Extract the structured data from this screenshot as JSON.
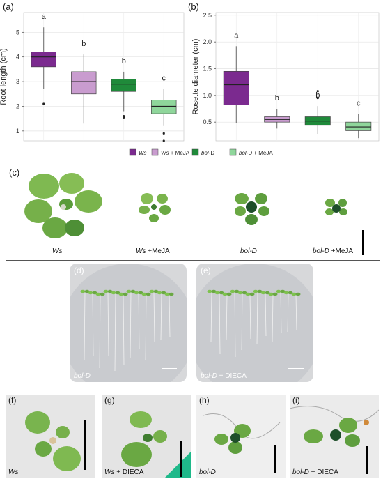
{
  "panels": {
    "a": "(a)",
    "b": "(b)",
    "c": "(c)",
    "d": "(d)",
    "e": "(e)",
    "f": "(f)",
    "g": "(g)",
    "h": "(h)",
    "i": "(i)"
  },
  "legend": [
    {
      "label_italic": "Ws",
      "label_rest": "",
      "color": "#7b2a8f"
    },
    {
      "label_italic": "Ws",
      "label_rest": " + MeJA",
      "color": "#c99ccf"
    },
    {
      "label_italic": "bol",
      "label_rest": "-D",
      "color": "#1f8a3a"
    },
    {
      "label_italic": "bol",
      "label_rest": "-D + MeJA",
      "color": "#8fd69b"
    }
  ],
  "chart_data": [
    {
      "type": "box",
      "ylabel": "Root length (cm)",
      "ylim": [
        0.6,
        5.8
      ],
      "yticks": [
        1,
        2,
        3,
        4,
        5
      ],
      "grid": true,
      "series": [
        {
          "q1": 3.6,
          "median": 4.0,
          "q3": 4.2,
          "whisker_low": 2.7,
          "whisker_high": 5.2,
          "outliers": [
            2.1
          ],
          "letter": "a",
          "color": "#7b2a8f"
        },
        {
          "q1": 2.5,
          "median": 3.0,
          "q3": 3.4,
          "whisker_low": 1.3,
          "whisker_high": 4.1,
          "outliers": [],
          "letter": "b",
          "color": "#c99ccf"
        },
        {
          "q1": 2.6,
          "median": 2.9,
          "q3": 3.1,
          "whisker_low": 1.8,
          "whisker_high": 3.4,
          "outliers": [
            1.6,
            1.55
          ],
          "letter": "b",
          "color": "#1f8a3a"
        },
        {
          "q1": 1.7,
          "median": 2.0,
          "q3": 2.25,
          "whisker_low": 1.2,
          "whisker_high": 2.7,
          "outliers": [
            0.9,
            0.6
          ],
          "letter": "c",
          "color": "#8fd69b"
        }
      ]
    },
    {
      "type": "box",
      "ylabel": "Rosette diameter (cm)",
      "ylim": [
        0.15,
        2.55
      ],
      "yticks": [
        0.5,
        1.0,
        1.5,
        2.0,
        2.5
      ],
      "ytick_labels": [
        "0.5",
        "1.0",
        "1.5",
        "2.0",
        "2.5"
      ],
      "grid": true,
      "series": [
        {
          "q1": 0.82,
          "median": 1.2,
          "q3": 1.45,
          "whisker_low": 0.48,
          "whisker_high": 1.92,
          "outliers": [],
          "letter": "a",
          "color": "#7b2a8f"
        },
        {
          "q1": 0.5,
          "median": 0.55,
          "q3": 0.6,
          "whisker_low": 0.38,
          "whisker_high": 0.75,
          "outliers": [],
          "letter": "b",
          "color": "#c99ccf"
        },
        {
          "q1": 0.44,
          "median": 0.52,
          "q3": 0.6,
          "whisker_low": 0.28,
          "whisker_high": 0.8,
          "outliers": [
            1.08,
            0.95
          ],
          "letter": "b",
          "color": "#1f8a3a"
        },
        {
          "q1": 0.34,
          "median": 0.41,
          "q3": 0.5,
          "whisker_low": 0.2,
          "whisker_high": 0.65,
          "outliers": [],
          "letter": "c",
          "color": "#8fd69b"
        }
      ]
    }
  ],
  "captions": {
    "c1_i": "Ws",
    "c1_r": "",
    "c2_i": "Ws",
    "c2_r": " +MeJA",
    "c3_i": "bol-D",
    "c3_r": "",
    "c4_i": "bol-D",
    "c4_r": " +MeJA",
    "d_i": "bol-D",
    "d_r": "",
    "e_i": "bol-D",
    "e_r": " + DIECA",
    "f_i": "Ws",
    "f_r": "",
    "g_i": "Ws",
    "g_r": " + DIECA",
    "h_i": "bol-D",
    "h_r": "",
    "i_i": "bol-D",
    "i_r": " + DIECA"
  },
  "colors": {
    "leaf": "#6aa843",
    "leaf_dark": "#2f6d2a",
    "bolD_center": "#1e4f2a"
  }
}
